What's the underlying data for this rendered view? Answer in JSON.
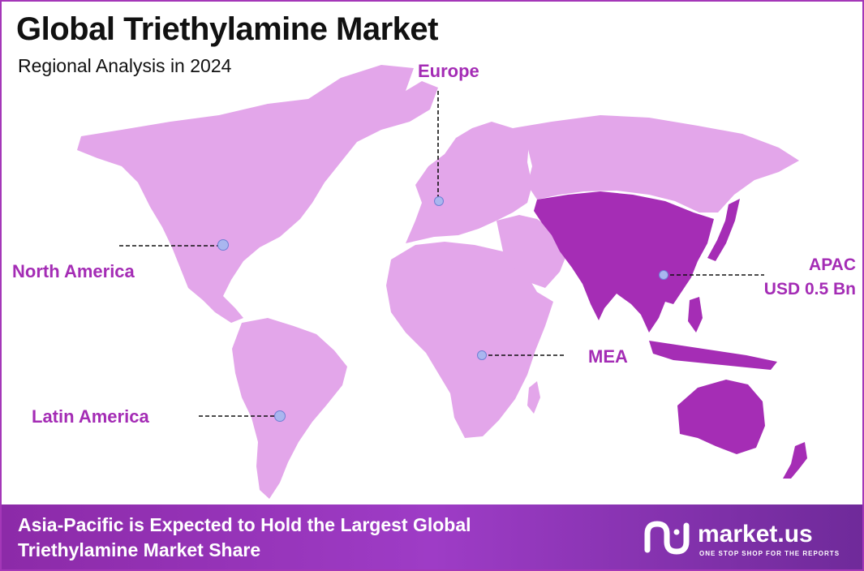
{
  "header": {
    "title": "Global Triethylamine Market",
    "subtitle": "Regional Analysis in 2024"
  },
  "regions": {
    "europe": "Europe",
    "north_america": "North America",
    "apac": "APAC",
    "apac_value": "USD 0.5 Bn",
    "mea": "MEA",
    "latin_america": "Latin America"
  },
  "footer": {
    "message_line1": "Asia-Pacific is Expected to Hold the Largest Global",
    "message_line2": "Triethylamine Market Share"
  },
  "brand": {
    "name": "market.us",
    "tagline": "ONE STOP SHOP FOR THE REPORTS"
  },
  "colors": {
    "land": "#e3a6ea",
    "highlight": "#a52db5",
    "accent": "#a42cb5",
    "marker": "#a9b6ef",
    "footer": "#8c2aa8"
  }
}
